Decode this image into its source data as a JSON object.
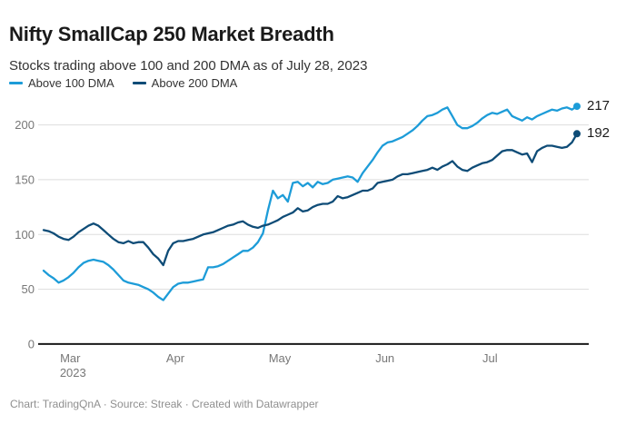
{
  "header": {
    "title": "Nifty SmallCap 250 Market Breadth",
    "subtitle": "Stocks trading above 100 and 200 DMA as of July 28, 2023"
  },
  "legend": {
    "items": [
      {
        "label": "Above 100 DMA",
        "color": "#1d9cd8"
      },
      {
        "label": "Above 200 DMA",
        "color": "#0e4c77"
      }
    ]
  },
  "chart_data": {
    "type": "line",
    "title": "Nifty SmallCap 250 Market Breadth",
    "subtitle": "Stocks trading above 100 and 200 DMA as of July 28, 2023",
    "grid": "horizontal",
    "legend_position": "top-left",
    "x_axis": {
      "unit": "trading days, late Feb – Jul 28, 2023",
      "ticks": [
        {
          "label": "Mar",
          "sublabel": "2023",
          "pos": 0.05
        },
        {
          "label": "Apr",
          "sublabel": "",
          "pos": 0.247
        },
        {
          "label": "May",
          "sublabel": "",
          "pos": 0.443
        },
        {
          "label": "Jun",
          "sublabel": "",
          "pos": 0.64
        },
        {
          "label": "Jul",
          "sublabel": "",
          "pos": 0.837
        }
      ]
    },
    "y_axis": {
      "ticks": [
        0,
        50,
        100,
        150,
        200
      ],
      "range": [
        0,
        230
      ]
    },
    "series": [
      {
        "name": "Above 100 DMA",
        "color": "#1d9cd8",
        "end_label": "217",
        "values": [
          67,
          63,
          60,
          56,
          58,
          61,
          65,
          70,
          74,
          76,
          77,
          76,
          75,
          72,
          68,
          63,
          58,
          56,
          55,
          54,
          52,
          50,
          47,
          43,
          40,
          46,
          52,
          55,
          56,
          56,
          57,
          58,
          59,
          70,
          70,
          71,
          73,
          76,
          79,
          82,
          85,
          85,
          88,
          93,
          101,
          122,
          140,
          133,
          136,
          130,
          147,
          148,
          144,
          147,
          143,
          148,
          146,
          147,
          150,
          151,
          152,
          153,
          152,
          148,
          156,
          162,
          168,
          175,
          181,
          184,
          185,
          187,
          189,
          192,
          195,
          199,
          204,
          208,
          209,
          211,
          214,
          216,
          208,
          200,
          197,
          197,
          199,
          202,
          206,
          209,
          211,
          210,
          212,
          214,
          208,
          206,
          204,
          207,
          205,
          208,
          210,
          212,
          214,
          213,
          215,
          216,
          214,
          217
        ]
      },
      {
        "name": "Above 200 DMA",
        "color": "#0e4c77",
        "end_label": "192",
        "values": [
          104,
          103,
          101,
          98,
          96,
          95,
          98,
          102,
          105,
          108,
          110,
          108,
          104,
          100,
          96,
          93,
          92,
          94,
          92,
          93,
          93,
          88,
          82,
          78,
          72,
          85,
          92,
          94,
          94,
          95,
          96,
          98,
          100,
          101,
          102,
          104,
          106,
          108,
          109,
          111,
          112,
          109,
          107,
          106,
          108,
          109,
          111,
          113,
          116,
          118,
          120,
          124,
          121,
          122,
          125,
          127,
          128,
          128,
          130,
          135,
          133,
          134,
          136,
          138,
          140,
          140,
          142,
          147,
          148,
          149,
          150,
          153,
          155,
          155,
          156,
          157,
          158,
          159,
          161,
          159,
          162,
          164,
          167,
          162,
          159,
          158,
          161,
          163,
          165,
          166,
          168,
          172,
          176,
          177,
          177,
          175,
          173,
          174,
          166,
          176,
          179,
          181,
          181,
          180,
          179,
          180,
          184,
          192
        ]
      }
    ]
  },
  "footer": {
    "credit": "Chart: TradingQnA · Source: Streak · Created with Datawrapper"
  }
}
